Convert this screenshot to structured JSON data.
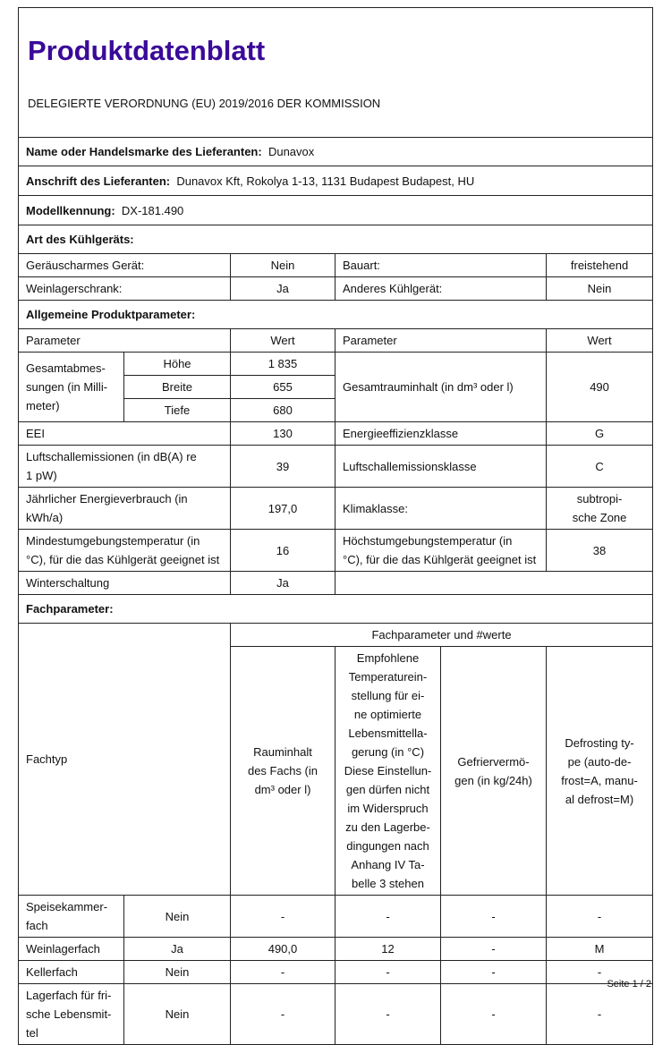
{
  "header": {
    "title": "Produktdatenblatt",
    "subtitle": "DELEGIERTE VERORDNUNG (EU) 2019/2016 DER KOMMISSION"
  },
  "supplier": {
    "name_label": "Name oder Handelsmarke des Lieferanten:",
    "name_value": "Dunavox",
    "address_label": "Anschrift des Lieferanten:",
    "address_value": "Dunavox Kft, Rokolya 1-13, 1131 Budapest Budapest, HU",
    "model_label": "Modellkennung:",
    "model_value": "DX-181.490"
  },
  "type_section": {
    "heading": "Art des Kühlgeräts:",
    "rows": [
      {
        "l1": "Geräuscharmes Gerät:",
        "v1": "Nein",
        "l2": "Bauart:",
        "v2": "freistehend"
      },
      {
        "l1": "Weinlagerschrank:",
        "v1": "Ja",
        "l2": "Anderes Kühlgerät:",
        "v2": "Nein"
      }
    ]
  },
  "general": {
    "heading": "Allgemeine Produktparameter:",
    "col_param": "Parameter",
    "col_value": "Wert",
    "dimensions_label": "Gesamtabmes-\nsungen (in Milli-\nmeter)",
    "dimensions": [
      {
        "label": "Höhe",
        "value": "1 835"
      },
      {
        "label": "Breite",
        "value": "655"
      },
      {
        "label": "Tiefe",
        "value": "680"
      }
    ],
    "volume_label": "Gesamtrauminhalt (in dm³ oder l)",
    "volume_value": "490",
    "rows": [
      {
        "l1": "EEI",
        "v1": "130",
        "l2": "Energieeffizienzklasse",
        "v2": "G"
      },
      {
        "l1": "Luftschallemissionen (in dB(A) re\n1 pW)",
        "v1": "39",
        "l2": "Luftschallemissionsklasse",
        "v2": "C"
      },
      {
        "l1": "Jährlicher Energieverbrauch (in\nkWh/a)",
        "v1": "197,0",
        "l2": "Klimaklasse:",
        "v2": "subtropi-\nsche Zone"
      },
      {
        "l1": "Mindestumgebungstemperatur (in\n°C), für die das Kühlgerät geeignet ist",
        "v1": "16",
        "l2": "Höchstumgebungstemperatur (in\n°C), für die das Kühlgerät geeignet ist",
        "v2": "38"
      }
    ],
    "winter_label": "Winterschaltung",
    "winter_value": "Ja"
  },
  "compartments": {
    "heading": "Fachparameter:",
    "type_label": "Fachtyp",
    "group_label": "Fachparameter und #werte",
    "columns": [
      "Rauminhalt\ndes Fachs (in\ndm³ oder l)",
      "Empfohlene\nTemperaturein-\nstellung für ei-\nne optimierte\nLebensmittella-\ngerung (in °C)\nDiese Einstellun-\ngen dürfen nicht\nim Widerspruch\nzu den Lagerbe-\ndingungen nach\nAnhang IV Ta-\nbelle 3 stehen",
      "Gefriervermö-\ngen (in kg/24h)",
      "Defrosting ty-\npe (auto-de-\nfrost=A, manu-\nal defrost=M)"
    ],
    "rows": [
      {
        "name": "Speisekammer-\nfach",
        "present": "Nein",
        "c1": "-",
        "c2": "-",
        "c3": "-",
        "c4": "-"
      },
      {
        "name": "Weinlagerfach",
        "present": "Ja",
        "c1": "490,0",
        "c2": "12",
        "c3": "-",
        "c4": "M"
      },
      {
        "name": "Kellerfach",
        "present": "Nein",
        "c1": "-",
        "c2": "-",
        "c3": "-",
        "c4": "-"
      },
      {
        "name": "Lagerfach für fri-\nsche Lebensmit-\ntel",
        "present": "Nein",
        "c1": "-",
        "c2": "-",
        "c3": "-",
        "c4": "-"
      }
    ]
  },
  "footer": {
    "page": "Seite 1 / 2"
  },
  "colors": {
    "title": "#3a0a99",
    "border": "#222222"
  }
}
